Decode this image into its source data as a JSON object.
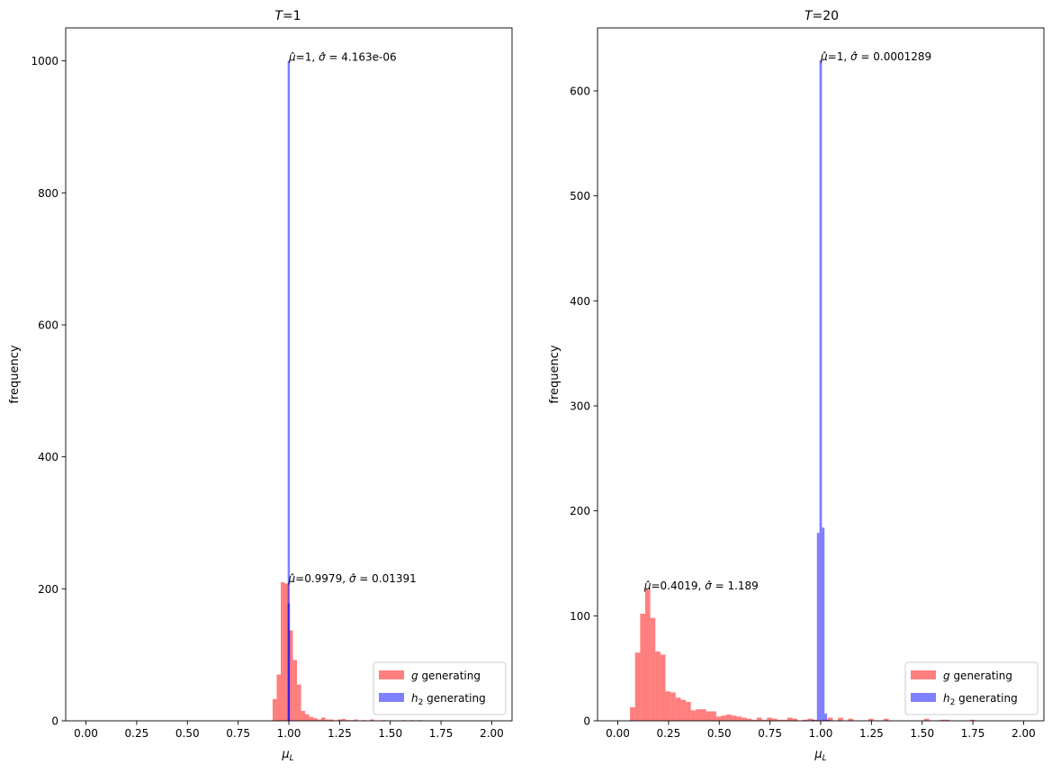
{
  "chart_data": [
    {
      "type": "histogram",
      "title": "T=1",
      "title_var": "T",
      "title_value": "=1",
      "xlabel": "μL",
      "xlabel_main": "μ",
      "xlabel_sub": "L",
      "ylabel": "frequency",
      "xlim": [
        -0.1,
        2.1
      ],
      "ylim": [
        0,
        1050
      ],
      "xticks": [
        0.0,
        0.25,
        0.5,
        0.75,
        1.0,
        1.25,
        1.5,
        1.75,
        2.0
      ],
      "xtick_labels": [
        "0.00",
        "0.25",
        "0.50",
        "0.75",
        "1.00",
        "1.25",
        "1.50",
        "1.75",
        "2.00"
      ],
      "yticks": [
        0,
        200,
        400,
        600,
        800,
        1000
      ],
      "ytick_labels": [
        "0",
        "200",
        "400",
        "600",
        "800",
        "1000"
      ],
      "grid": false,
      "legend": {
        "placement": "lower-right",
        "entries": [
          {
            "var": "g",
            "sub": "",
            "text": " generating",
            "color": "#ff0000",
            "alpha": 0.5
          },
          {
            "var": "h",
            "sub": "2",
            "text": " generating",
            "color": "#0000ff",
            "alpha": 0.5
          }
        ]
      },
      "series": [
        {
          "name": "g generating",
          "color": "#ff0000",
          "alpha": 0.5,
          "bin_width": 0.02,
          "bins": [
            {
              "x": 0.93,
              "y": 33
            },
            {
              "x": 0.95,
              "y": 70
            },
            {
              "x": 0.97,
              "y": 210
            },
            {
              "x": 0.99,
              "y": 208
            },
            {
              "x": 1.01,
              "y": 137
            },
            {
              "x": 1.03,
              "y": 92
            },
            {
              "x": 1.05,
              "y": 55
            },
            {
              "x": 1.07,
              "y": 15
            },
            {
              "x": 1.09,
              "y": 10
            },
            {
              "x": 1.11,
              "y": 6
            },
            {
              "x": 1.13,
              "y": 4
            },
            {
              "x": 1.15,
              "y": 2
            },
            {
              "x": 1.17,
              "y": 5
            },
            {
              "x": 1.19,
              "y": 2
            },
            {
              "x": 1.21,
              "y": 2
            },
            {
              "x": 1.25,
              "y": 2
            },
            {
              "x": 1.27,
              "y": 3
            },
            {
              "x": 1.29,
              "y": 1
            },
            {
              "x": 1.31,
              "y": 1
            },
            {
              "x": 1.33,
              "y": 2
            },
            {
              "x": 1.37,
              "y": 1
            },
            {
              "x": 1.41,
              "y": 2
            },
            {
              "x": 1.47,
              "y": 1
            },
            {
              "x": 1.57,
              "y": 1
            },
            {
              "x": 1.61,
              "y": 1
            },
            {
              "x": 1.65,
              "y": 1
            }
          ]
        },
        {
          "name": "h2 generating",
          "color": "#0000ff",
          "alpha": 0.5,
          "bin_width": 0.011,
          "bins": [
            {
              "x": 0.9995,
              "y": 1000
            },
            {
              "x": 0.9995,
              "y": 178
            }
          ]
        }
      ],
      "annotations": [
        {
          "x": 1.0,
          "y": 1000,
          "mu": "=1, ",
          "sigma": " = 4.163e-06"
        },
        {
          "x": 0.9979,
          "y": 210,
          "mu": "=0.9979, ",
          "sigma": " = 0.01391"
        }
      ]
    },
    {
      "type": "histogram",
      "title": "T=20",
      "title_var": "T",
      "title_value": "=20",
      "xlabel": "μL",
      "xlabel_main": "μ",
      "xlabel_sub": "L",
      "ylabel": "frequency",
      "xlim": [
        -0.1,
        2.1
      ],
      "ylim": [
        0,
        660
      ],
      "xticks": [
        0.0,
        0.25,
        0.5,
        0.75,
        1.0,
        1.25,
        1.5,
        1.75,
        2.0
      ],
      "xtick_labels": [
        "0.00",
        "0.25",
        "0.50",
        "0.75",
        "1.00",
        "1.25",
        "1.50",
        "1.75",
        "2.00"
      ],
      "yticks": [
        0,
        100,
        200,
        300,
        400,
        500,
        600
      ],
      "ytick_labels": [
        "0",
        "100",
        "200",
        "300",
        "400",
        "500",
        "600"
      ],
      "grid": false,
      "legend": {
        "placement": "lower-right",
        "entries": [
          {
            "var": "g",
            "sub": "",
            "text": " generating",
            "color": "#ff0000",
            "alpha": 0.5
          },
          {
            "var": "h",
            "sub": "2",
            "text": " generating",
            "color": "#0000ff",
            "alpha": 0.5
          }
        ]
      },
      "series": [
        {
          "name": "g generating",
          "color": "#ff0000",
          "alpha": 0.5,
          "bin_width": 0.025,
          "bins": [
            {
              "x": 0.0725,
              "y": 13
            },
            {
              "x": 0.0975,
              "y": 65
            },
            {
              "x": 0.1225,
              "y": 102
            },
            {
              "x": 0.1475,
              "y": 125
            },
            {
              "x": 0.1725,
              "y": 98
            },
            {
              "x": 0.1975,
              "y": 66
            },
            {
              "x": 0.2225,
              "y": 63
            },
            {
              "x": 0.2475,
              "y": 28
            },
            {
              "x": 0.2725,
              "y": 27
            },
            {
              "x": 0.2975,
              "y": 22
            },
            {
              "x": 0.3225,
              "y": 20
            },
            {
              "x": 0.3475,
              "y": 18
            },
            {
              "x": 0.3725,
              "y": 10
            },
            {
              "x": 0.3975,
              "y": 11
            },
            {
              "x": 0.4225,
              "y": 11
            },
            {
              "x": 0.4475,
              "y": 9
            },
            {
              "x": 0.4725,
              "y": 9
            },
            {
              "x": 0.4975,
              "y": 4
            },
            {
              "x": 0.5225,
              "y": 5
            },
            {
              "x": 0.5475,
              "y": 6
            },
            {
              "x": 0.5725,
              "y": 5
            },
            {
              "x": 0.5975,
              "y": 4
            },
            {
              "x": 0.6225,
              "y": 3
            },
            {
              "x": 0.6475,
              "y": 2
            },
            {
              "x": 0.6725,
              "y": 1
            },
            {
              "x": 0.6975,
              "y": 3
            },
            {
              "x": 0.7225,
              "y": 1
            },
            {
              "x": 0.7475,
              "y": 3
            },
            {
              "x": 0.7725,
              "y": 2
            },
            {
              "x": 0.7975,
              "y": 1
            },
            {
              "x": 0.8225,
              "y": 1
            },
            {
              "x": 0.8475,
              "y": 3
            },
            {
              "x": 0.8725,
              "y": 2
            },
            {
              "x": 0.9225,
              "y": 1
            },
            {
              "x": 0.9475,
              "y": 2
            },
            {
              "x": 0.9725,
              "y": 1
            },
            {
              "x": 1.0225,
              "y": 1
            },
            {
              "x": 1.0475,
              "y": 3
            },
            {
              "x": 1.0975,
              "y": 3
            },
            {
              "x": 1.1475,
              "y": 2
            },
            {
              "x": 1.2475,
              "y": 2
            },
            {
              "x": 1.3225,
              "y": 2
            },
            {
              "x": 1.5225,
              "y": 2
            },
            {
              "x": 1.5975,
              "y": 1
            },
            {
              "x": 1.6225,
              "y": 1
            },
            {
              "x": 1.7475,
              "y": 1
            }
          ]
        },
        {
          "name": "h2 generating",
          "color": "#0000ff",
          "alpha": 0.5,
          "bin_width": 0.0125,
          "bins": [
            {
              "x": 0.9625,
              "y": 1
            },
            {
              "x": 0.9875,
              "y": 179
            },
            {
              "x": 1.0,
              "y": 629
            },
            {
              "x": 1.0125,
              "y": 184
            },
            {
              "x": 1.025,
              "y": 7
            },
            {
              "x": 1.0375,
              "y": 1
            }
          ]
        }
      ],
      "annotations": [
        {
          "x": 1.0,
          "y": 629,
          "mu": "=1, ",
          "sigma": " = 0.0001289"
        },
        {
          "x": 0.13,
          "y": 125,
          "mu": "=0.4019, ",
          "sigma": " = 1.189"
        }
      ]
    }
  ]
}
